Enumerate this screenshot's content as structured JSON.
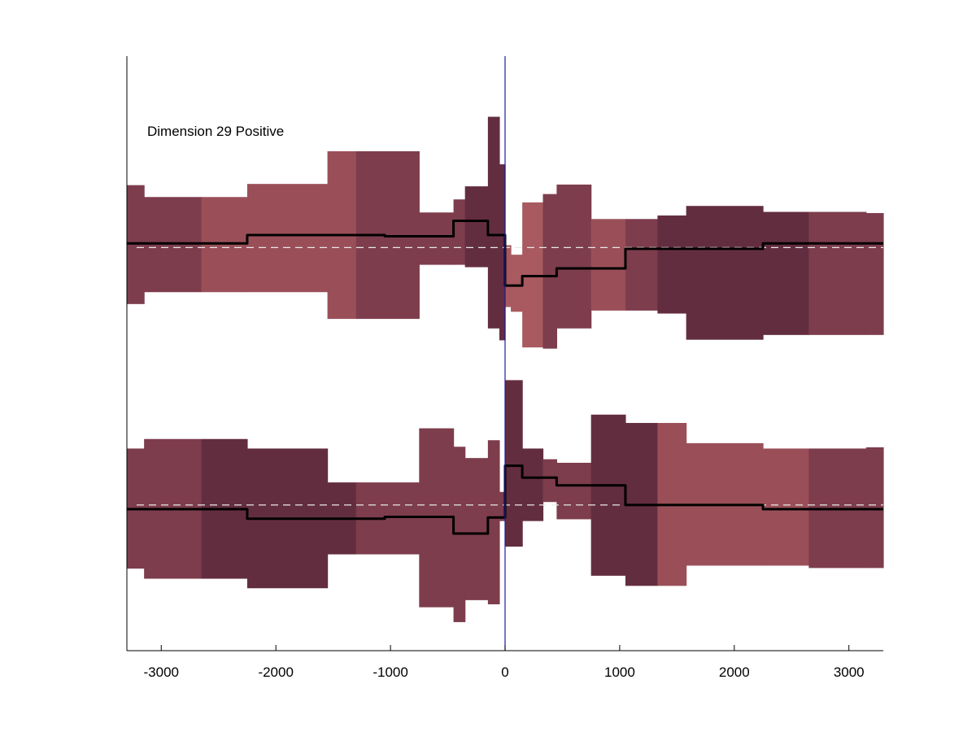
{
  "chart_data": {
    "type": "step",
    "annotation": "Dimension 29 Positive",
    "xlim": [
      -3300,
      3300
    ],
    "ylim": [
      0,
      1
    ],
    "grid": false,
    "x_ticks": [
      -3000,
      -2000,
      -1000,
      0,
      1000,
      2000,
      3000
    ],
    "x_tick_labels": [
      "-3000",
      "-2000",
      "-1000",
      "0",
      "1000",
      "2000",
      "3000"
    ],
    "zero_line": {
      "x": 0,
      "color": "#1a1aa0"
    },
    "colors": {
      "dark": "#632d40",
      "medium": "#7d3d4c",
      "light": "#9a4f58",
      "lightest": "#a85a60",
      "line": "#000000",
      "baseline": "#e8e8e8"
    },
    "panels": [
      {
        "name": "upper",
        "baseline": 0.678,
        "bands": [
          {
            "x0": -3300,
            "x1": -3150,
            "lo": 0.583,
            "hi": 0.783,
            "shade": "medium"
          },
          {
            "x0": -3150,
            "x1": -2650,
            "lo": 0.603,
            "hi": 0.763,
            "shade": "medium"
          },
          {
            "x0": -2650,
            "x1": -2250,
            "lo": 0.603,
            "hi": 0.763,
            "shade": "light"
          },
          {
            "x0": -2250,
            "x1": -1550,
            "lo": 0.603,
            "hi": 0.785,
            "shade": "light"
          },
          {
            "x0": -1550,
            "x1": -1300,
            "lo": 0.558,
            "hi": 0.84,
            "shade": "light"
          },
          {
            "x0": -1300,
            "x1": -750,
            "lo": 0.558,
            "hi": 0.84,
            "shade": "medium"
          },
          {
            "x0": -750,
            "x1": -450,
            "lo": 0.649,
            "hi": 0.737,
            "shade": "medium"
          },
          {
            "x0": -450,
            "x1": -350,
            "lo": 0.649,
            "hi": 0.759,
            "shade": "medium"
          },
          {
            "x0": -350,
            "x1": -150,
            "lo": 0.645,
            "hi": 0.781,
            "shade": "dark"
          },
          {
            "x0": -150,
            "x1": -50,
            "lo": 0.542,
            "hi": 0.898,
            "shade": "dark"
          },
          {
            "x0": -50,
            "x1": 0,
            "lo": 0.522,
            "hi": 0.818,
            "shade": "dark"
          },
          {
            "x0": 0,
            "x1": 50,
            "lo": 0.578,
            "hi": 0.682,
            "shade": "lightest"
          },
          {
            "x0": 50,
            "x1": 150,
            "lo": 0.57,
            "hi": 0.666,
            "shade": "lightest"
          },
          {
            "x0": 150,
            "x1": 330,
            "lo": 0.51,
            "hi": 0.754,
            "shade": "lightest"
          },
          {
            "x0": 330,
            "x1": 450,
            "lo": 0.508,
            "hi": 0.768,
            "shade": "medium"
          },
          {
            "x0": 450,
            "x1": 750,
            "lo": 0.542,
            "hi": 0.784,
            "shade": "medium"
          },
          {
            "x0": 750,
            "x1": 1050,
            "lo": 0.572,
            "hi": 0.726,
            "shade": "light"
          },
          {
            "x0": 1050,
            "x1": 1330,
            "lo": 0.572,
            "hi": 0.726,
            "shade": "medium"
          },
          {
            "x0": 1330,
            "x1": 1580,
            "lo": 0.567,
            "hi": 0.732,
            "shade": "dark"
          },
          {
            "x0": 1580,
            "x1": 2250,
            "lo": 0.523,
            "hi": 0.748,
            "shade": "dark"
          },
          {
            "x0": 2250,
            "x1": 2650,
            "lo": 0.531,
            "hi": 0.738,
            "shade": "dark"
          },
          {
            "x0": 2650,
            "x1": 3150,
            "lo": 0.531,
            "hi": 0.738,
            "shade": "medium"
          },
          {
            "x0": 3150,
            "x1": 3300,
            "lo": 0.531,
            "hi": 0.736,
            "shade": "medium"
          }
        ],
        "line": [
          {
            "x0": -3300,
            "x1": -2250,
            "y": 0.685
          },
          {
            "x0": -2250,
            "x1": -1050,
            "y": 0.699
          },
          {
            "x0": -1050,
            "x1": -450,
            "y": 0.697
          },
          {
            "x0": -450,
            "x1": -150,
            "y": 0.723
          },
          {
            "x0": -150,
            "x1": 0,
            "y": 0.699
          },
          {
            "x0": 0,
            "x1": 150,
            "y": 0.614
          },
          {
            "x0": 150,
            "x1": 450,
            "y": 0.63
          },
          {
            "x0": 450,
            "x1": 1050,
            "y": 0.643
          },
          {
            "x0": 1050,
            "x1": 2250,
            "y": 0.676
          },
          {
            "x0": 2250,
            "x1": 3300,
            "y": 0.685
          }
        ]
      },
      {
        "name": "lower",
        "baseline": 0.245,
        "bands": [
          {
            "x0": -3300,
            "x1": -3150,
            "lo": 0.138,
            "hi": 0.34,
            "shade": "medium"
          },
          {
            "x0": -3150,
            "x1": -2650,
            "lo": 0.121,
            "hi": 0.356,
            "shade": "medium"
          },
          {
            "x0": -2650,
            "x1": -2250,
            "lo": 0.121,
            "hi": 0.356,
            "shade": "dark"
          },
          {
            "x0": -2250,
            "x1": -1550,
            "lo": 0.105,
            "hi": 0.34,
            "shade": "dark"
          },
          {
            "x0": -1550,
            "x1": -1300,
            "lo": 0.162,
            "hi": 0.283,
            "shade": "dark"
          },
          {
            "x0": -1300,
            "x1": -750,
            "lo": 0.162,
            "hi": 0.283,
            "shade": "medium"
          },
          {
            "x0": -750,
            "x1": -450,
            "lo": 0.073,
            "hi": 0.374,
            "shade": "medium"
          },
          {
            "x0": -450,
            "x1": -350,
            "lo": 0.048,
            "hi": 0.343,
            "shade": "medium"
          },
          {
            "x0": -350,
            "x1": -150,
            "lo": 0.085,
            "hi": 0.324,
            "shade": "medium"
          },
          {
            "x0": -150,
            "x1": -50,
            "lo": 0.078,
            "hi": 0.354,
            "shade": "medium"
          },
          {
            "x0": -50,
            "x1": 0,
            "lo": 0.218,
            "hi": 0.267,
            "shade": "medium"
          },
          {
            "x0": 0,
            "x1": 150,
            "lo": 0.175,
            "hi": 0.455,
            "shade": "dark"
          },
          {
            "x0": 150,
            "x1": 330,
            "lo": 0.218,
            "hi": 0.34,
            "shade": "dark"
          },
          {
            "x0": 330,
            "x1": 450,
            "lo": 0.25,
            "hi": 0.322,
            "shade": "medium"
          },
          {
            "x0": 450,
            "x1": 750,
            "lo": 0.221,
            "hi": 0.316,
            "shade": "medium"
          },
          {
            "x0": 750,
            "x1": 1050,
            "lo": 0.126,
            "hi": 0.397,
            "shade": "dark"
          },
          {
            "x0": 1050,
            "x1": 1330,
            "lo": 0.109,
            "hi": 0.383,
            "shade": "dark"
          },
          {
            "x0": 1330,
            "x1": 1580,
            "lo": 0.109,
            "hi": 0.383,
            "shade": "light"
          },
          {
            "x0": 1580,
            "x1": 2250,
            "lo": 0.143,
            "hi": 0.349,
            "shade": "light"
          },
          {
            "x0": 2250,
            "x1": 2650,
            "lo": 0.143,
            "hi": 0.34,
            "shade": "light"
          },
          {
            "x0": 2650,
            "x1": 3150,
            "lo": 0.139,
            "hi": 0.34,
            "shade": "medium"
          },
          {
            "x0": 3150,
            "x1": 3300,
            "lo": 0.139,
            "hi": 0.342,
            "shade": "medium"
          }
        ],
        "line": [
          {
            "x0": -3300,
            "x1": -2250,
            "y": 0.238
          },
          {
            "x0": -2250,
            "x1": -1050,
            "y": 0.222
          },
          {
            "x0": -1050,
            "x1": -450,
            "y": 0.225
          },
          {
            "x0": -450,
            "x1": -150,
            "y": 0.197
          },
          {
            "x0": -150,
            "x1": 0,
            "y": 0.224
          },
          {
            "x0": 0,
            "x1": 150,
            "y": 0.311
          },
          {
            "x0": 150,
            "x1": 450,
            "y": 0.291
          },
          {
            "x0": 450,
            "x1": 1050,
            "y": 0.278
          },
          {
            "x0": 1050,
            "x1": 2250,
            "y": 0.245
          },
          {
            "x0": 2250,
            "x1": 3300,
            "y": 0.238
          }
        ]
      }
    ]
  }
}
